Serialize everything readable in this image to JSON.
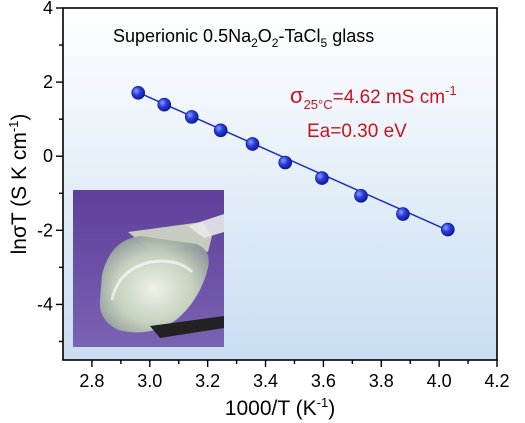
{
  "chart_data": {
    "type": "scatter",
    "title": {
      "pre": "Superionic 0.5Na",
      "sub1": "2",
      "mid1": "O",
      "sub2": "2",
      "mid2": "-TaCl",
      "sub3": "5",
      "post": " glass"
    },
    "xlabel": {
      "main": "1000/T (K",
      "sup": "-1",
      "close": ")"
    },
    "ylabel": {
      "main": "lnσT (S K cm",
      "sup": "-1",
      "close": ")"
    },
    "xlim": [
      2.7,
      4.2
    ],
    "ylim": [
      -5.5,
      4
    ],
    "x_ticks": [
      "2.8",
      "3.0",
      "3.2",
      "3.4",
      "3.6",
      "3.8",
      "4.0",
      "4.2"
    ],
    "x_tick_values": [
      2.8,
      3.0,
      3.2,
      3.4,
      3.6,
      3.8,
      4.0,
      4.2
    ],
    "y_ticks": [
      "4",
      "2",
      "0",
      "-2",
      "-4"
    ],
    "y_tick_values": [
      4,
      2,
      0,
      -2,
      -4
    ],
    "grid": false,
    "series": [
      {
        "x": [
          2.96,
          3.05,
          3.145,
          3.245,
          3.355,
          3.468,
          3.595,
          3.73,
          3.875,
          4.03
        ],
        "y": [
          1.71,
          1.39,
          1.06,
          0.7,
          0.33,
          -0.17,
          -0.59,
          -1.07,
          -1.56,
          -1.98
        ]
      }
    ],
    "fit_line": {
      "x": [
        2.96,
        4.03
      ],
      "y": [
        1.72,
        -2.0
      ]
    },
    "annotations": {
      "sigma_symbol": "σ",
      "sigma_sub": "25°C",
      "sigma_value": "=4.62 mS cm",
      "sigma_sup": "-1",
      "ea": "Ea=0.30 eV"
    },
    "colors": {
      "marker": "#1f2fd6",
      "line": "#1a2fc0",
      "annotation": "#c8141e",
      "background_top": "#ffffff",
      "background_bottom": "#c9def2",
      "inset": "#6a4fa3"
    },
    "inset_photo": "glass-sample-photo"
  }
}
